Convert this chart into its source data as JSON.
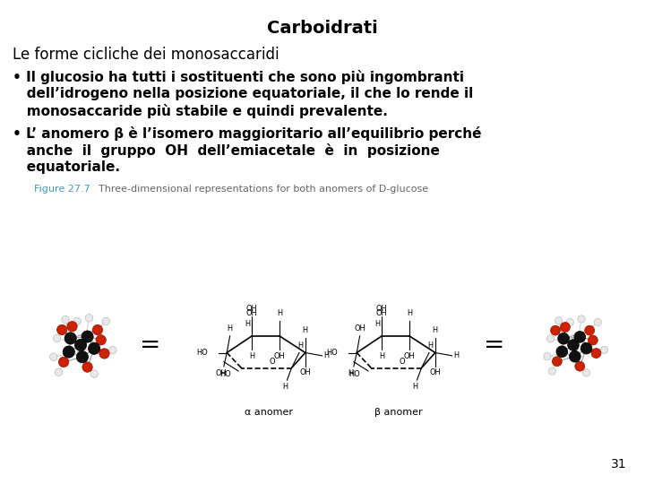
{
  "title": "Carboidrati",
  "subtitle": "Le forme cicliche dei monosaccaridi",
  "bullet1_line1": "• Il glucosio ha tutti i sostituenti che sono più ingombranti",
  "bullet1_line2": "   dell’idrogeno nella posizione equatoriale, il che lo rende il",
  "bullet1_line3": "   monosaccaride più stabile e quindi prevalente.",
  "bullet2_line1": "• L’ anomero β è l’isomero maggioritario all’equilibrio perché",
  "bullet2_line2": "   anche  il  gruppo  OH  dell’emiacetale  è  in  posizione",
  "bullet2_line3": "   equatoriale.",
  "figure_label": "Figure 27.7",
  "figure_caption": "Three-dimensional representations for both anomers of D-glucose",
  "alpha_label": "α anomer",
  "beta_label": "β anomer",
  "page_number": "31",
  "bg_color": "#ffffff",
  "title_color": "#000000",
  "subtitle_color": "#000000",
  "body_color": "#000000",
  "figure_label_color": "#4499bb",
  "caption_color": "#666666",
  "title_fontsize": 14,
  "subtitle_fontsize": 12,
  "body_fontsize": 11,
  "figure_label_fontsize": 8,
  "caption_fontsize": 8,
  "anomer_label_fontsize": 8,
  "page_fontsize": 10
}
